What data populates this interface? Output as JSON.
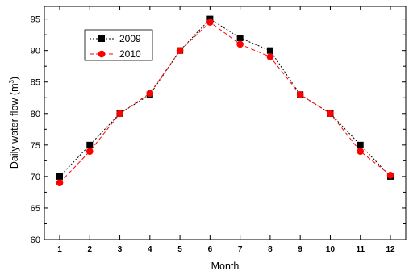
{
  "chart_data": {
    "type": "line",
    "xlabel": "Month",
    "ylabel": "Daily water flow (m",
    "ylabel_sup": "3",
    "ylabel_tail": ")",
    "x": [
      1,
      2,
      3,
      4,
      5,
      6,
      7,
      8,
      9,
      10,
      11,
      12
    ],
    "xtick_labels": [
      "1",
      "2",
      "3",
      "4",
      "5",
      "6",
      "7",
      "8",
      "9",
      "10",
      "11",
      "12"
    ],
    "ylim": [
      60,
      97
    ],
    "yticks": [
      60,
      65,
      70,
      75,
      80,
      85,
      90,
      95
    ],
    "ytick_labels": [
      "60",
      "65",
      "70",
      "75",
      "80",
      "85",
      "90",
      "95"
    ],
    "legend_position": "top-left",
    "series": [
      {
        "name": "2009",
        "marker": "square",
        "color": "#000000",
        "dash": "dotted",
        "values": [
          70,
          75,
          80,
          83,
          90,
          95,
          92,
          90,
          83,
          80,
          75,
          70
        ]
      },
      {
        "name": "2010",
        "marker": "circle",
        "color": "#ff0000",
        "dash": "dashed",
        "values": [
          69,
          74,
          80,
          83.2,
          90,
          94.5,
          91,
          89,
          83,
          80,
          74,
          70.2
        ]
      }
    ]
  }
}
